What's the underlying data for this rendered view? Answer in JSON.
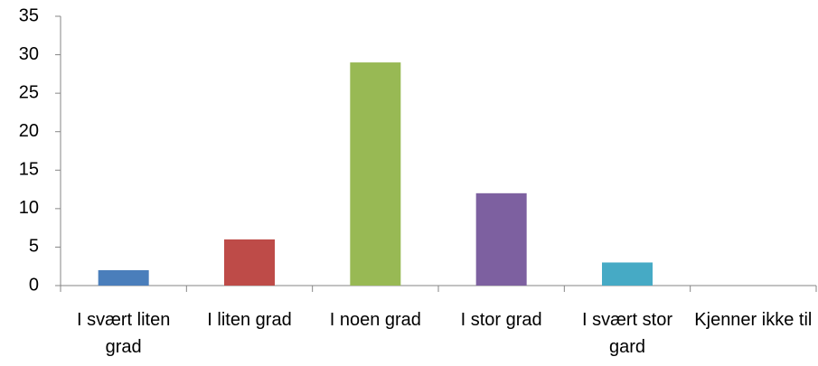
{
  "chart_data": {
    "type": "bar",
    "categories": [
      "I svært liten grad",
      "I liten grad",
      "I noen grad",
      "I stor grad",
      "I svært stor gard",
      "Kjenner ikke til"
    ],
    "values": [
      2,
      6,
      29,
      12,
      3,
      0
    ],
    "colors": [
      "#4a7ebb",
      "#be4b48",
      "#98b954",
      "#7d60a0",
      "#46aac5",
      "#f79646"
    ],
    "ylim": [
      0,
      35
    ],
    "yticks": [
      0,
      5,
      10,
      15,
      20,
      25,
      30,
      35
    ],
    "grid": false
  }
}
